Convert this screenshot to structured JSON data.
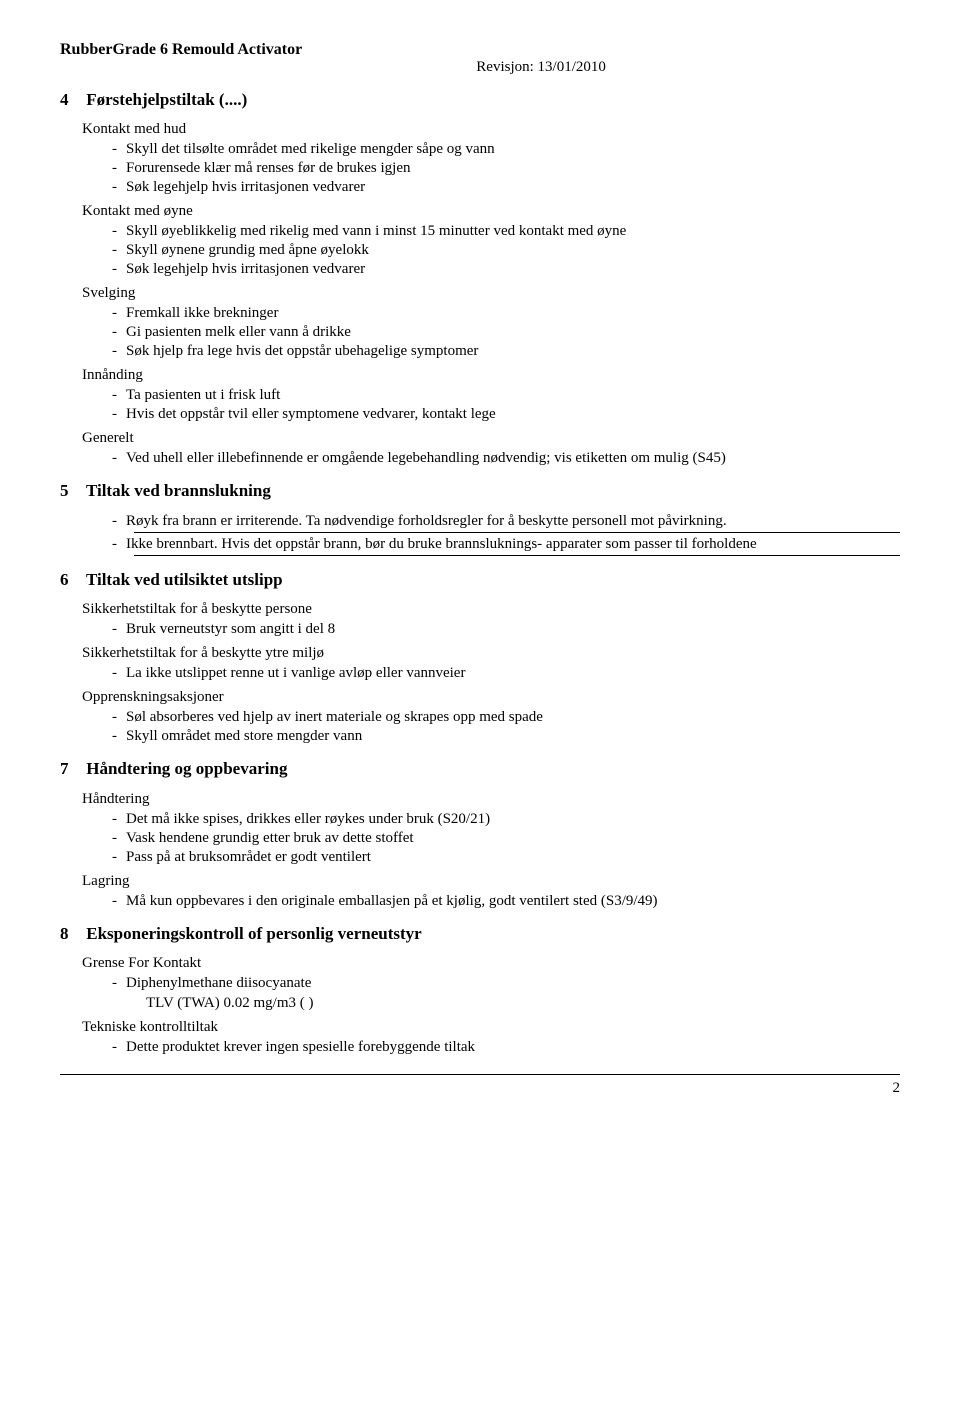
{
  "header": {
    "product_title": "RubberGrade 6 Remould Activator",
    "revision": "Revisjon: 13/01/2010"
  },
  "sections": {
    "s4": {
      "number": "4",
      "title": "Førstehjelpstiltak (....)",
      "groups": {
        "skin": {
          "label": "Kontakt med hud",
          "items": [
            "Skyll det tilsølte området med rikelige mengder såpe og vann",
            "Forurensede klær må renses før de brukes igjen",
            "Søk legehjelp hvis irritasjonen vedvarer"
          ]
        },
        "eye": {
          "label": "Kontakt med øyne",
          "items": [
            "Skyll øyeblikkelig med rikelig med vann i minst 15 minutter ved kontakt med øyne",
            "Skyll øynene grundig med åpne øyelokk",
            "Søk legehjelp hvis irritasjonen vedvarer"
          ]
        },
        "swallow": {
          "label": "Svelging",
          "items": [
            "Fremkall ikke brekninger",
            "Gi pasienten melk eller vann å drikke",
            "Søk hjelp fra lege hvis det oppstår ubehagelige symptomer"
          ]
        },
        "inhale": {
          "label": "Innånding",
          "items": [
            "Ta pasienten ut i frisk luft",
            "Hvis det oppstår tvil eller symptomene vedvarer, kontakt lege"
          ]
        },
        "general": {
          "label": "Generelt",
          "items": [
            "Ved uhell eller illebefinnende er omgående legebehandling nødvendig; vis etiketten om mulig (S45)"
          ]
        }
      }
    },
    "s5": {
      "number": "5",
      "title": "Tiltak ved brannslukning",
      "items": [
        "Røyk fra brann er irriterende. Ta nødvendige forholdsregler for å beskytte personell mot påvirkning.",
        "Ikke brennbart. Hvis det oppstår brann, bør du bruke brannsluknings- apparater som passer til forholdene"
      ]
    },
    "s6": {
      "number": "6",
      "title": "Tiltak ved utilsiktet utslipp",
      "groups": {
        "persons": {
          "label": "Sikkerhetstiltak for å beskytte persone",
          "items": [
            "Bruk verneutstyr som angitt i del 8"
          ]
        },
        "env": {
          "label": "Sikkerhetstiltak for å beskytte ytre miljø",
          "items": [
            "La ikke utslippet renne ut i vanlige avløp eller vannveier"
          ]
        },
        "cleanup": {
          "label": "Opprenskningsaksjoner",
          "items": [
            "Søl absorberes ved hjelp av inert materiale og skrapes opp med spade",
            "Skyll området med store mengder vann"
          ]
        }
      }
    },
    "s7": {
      "number": "7",
      "title": "Håndtering og oppbevaring",
      "groups": {
        "handling": {
          "label": "Håndtering",
          "items": [
            "Det må ikke spises, drikkes eller røykes under bruk (S20/21)",
            "Vask hendene grundig etter bruk av dette stoffet",
            "Pass på at bruksområdet er godt ventilert"
          ]
        },
        "storage": {
          "label": "Lagring",
          "items": [
            "Må kun oppbevares i den originale emballasjen på et kjølig, godt ventilert sted (S3/9/49)"
          ]
        }
      }
    },
    "s8": {
      "number": "8",
      "title": "Eksponeringskontroll of personlig verneutstyr",
      "groups": {
        "limits": {
          "label": "Grense For Kontakt",
          "items": [
            "Diphenylmethane diisocyanate"
          ],
          "sub": "TLV (TWA) 0.02 mg/m3 ( )"
        },
        "tech": {
          "label": "Tekniske kontrolltiltak",
          "items": [
            "Dette produktet krever ingen spesielle forebyggende tiltak"
          ]
        }
      }
    }
  },
  "page_number": "2"
}
